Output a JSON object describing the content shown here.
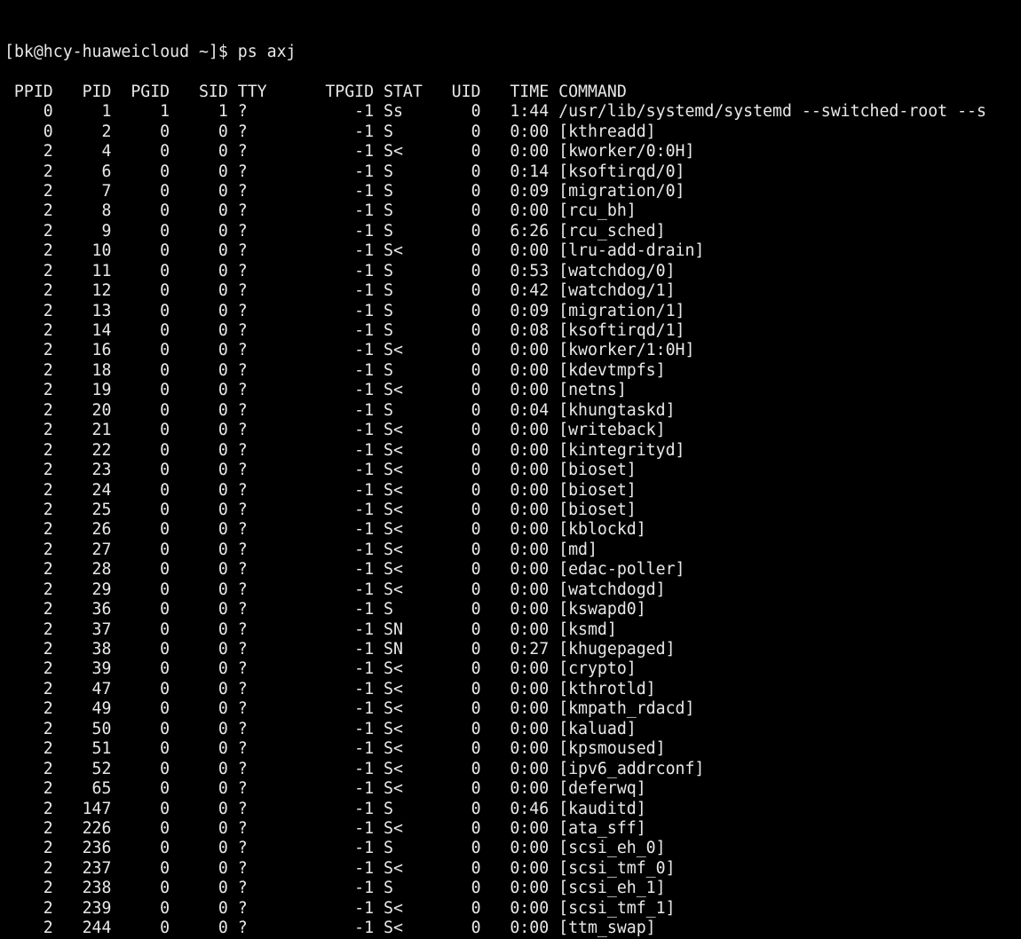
{
  "terminal": {
    "prompt": "[bk@hcy-huaweicloud ~]$ ps axj",
    "text_color": "#e8e8e8",
    "background": "#000000",
    "columns": [
      "PPID",
      "PID",
      "PGID",
      "SID",
      "TTY",
      "TPGID",
      "STAT",
      "UID",
      "TIME",
      "COMMAND"
    ],
    "rows": [
      [
        "0",
        "1",
        "1",
        "1",
        "?",
        "-1",
        "Ss",
        "0",
        "1:44",
        "/usr/lib/systemd/systemd --switched-root --s"
      ],
      [
        "0",
        "2",
        "0",
        "0",
        "?",
        "-1",
        "S",
        "0",
        "0:00",
        "[kthreadd]"
      ],
      [
        "2",
        "4",
        "0",
        "0",
        "?",
        "-1",
        "S<",
        "0",
        "0:00",
        "[kworker/0:0H]"
      ],
      [
        "2",
        "6",
        "0",
        "0",
        "?",
        "-1",
        "S",
        "0",
        "0:14",
        "[ksoftirqd/0]"
      ],
      [
        "2",
        "7",
        "0",
        "0",
        "?",
        "-1",
        "S",
        "0",
        "0:09",
        "[migration/0]"
      ],
      [
        "2",
        "8",
        "0",
        "0",
        "?",
        "-1",
        "S",
        "0",
        "0:00",
        "[rcu_bh]"
      ],
      [
        "2",
        "9",
        "0",
        "0",
        "?",
        "-1",
        "S",
        "0",
        "6:26",
        "[rcu_sched]"
      ],
      [
        "2",
        "10",
        "0",
        "0",
        "?",
        "-1",
        "S<",
        "0",
        "0:00",
        "[lru-add-drain]"
      ],
      [
        "2",
        "11",
        "0",
        "0",
        "?",
        "-1",
        "S",
        "0",
        "0:53",
        "[watchdog/0]"
      ],
      [
        "2",
        "12",
        "0",
        "0",
        "?",
        "-1",
        "S",
        "0",
        "0:42",
        "[watchdog/1]"
      ],
      [
        "2",
        "13",
        "0",
        "0",
        "?",
        "-1",
        "S",
        "0",
        "0:09",
        "[migration/1]"
      ],
      [
        "2",
        "14",
        "0",
        "0",
        "?",
        "-1",
        "S",
        "0",
        "0:08",
        "[ksoftirqd/1]"
      ],
      [
        "2",
        "16",
        "0",
        "0",
        "?",
        "-1",
        "S<",
        "0",
        "0:00",
        "[kworker/1:0H]"
      ],
      [
        "2",
        "18",
        "0",
        "0",
        "?",
        "-1",
        "S",
        "0",
        "0:00",
        "[kdevtmpfs]"
      ],
      [
        "2",
        "19",
        "0",
        "0",
        "?",
        "-1",
        "S<",
        "0",
        "0:00",
        "[netns]"
      ],
      [
        "2",
        "20",
        "0",
        "0",
        "?",
        "-1",
        "S",
        "0",
        "0:04",
        "[khungtaskd]"
      ],
      [
        "2",
        "21",
        "0",
        "0",
        "?",
        "-1",
        "S<",
        "0",
        "0:00",
        "[writeback]"
      ],
      [
        "2",
        "22",
        "0",
        "0",
        "?",
        "-1",
        "S<",
        "0",
        "0:00",
        "[kintegrityd]"
      ],
      [
        "2",
        "23",
        "0",
        "0",
        "?",
        "-1",
        "S<",
        "0",
        "0:00",
        "[bioset]"
      ],
      [
        "2",
        "24",
        "0",
        "0",
        "?",
        "-1",
        "S<",
        "0",
        "0:00",
        "[bioset]"
      ],
      [
        "2",
        "25",
        "0",
        "0",
        "?",
        "-1",
        "S<",
        "0",
        "0:00",
        "[bioset]"
      ],
      [
        "2",
        "26",
        "0",
        "0",
        "?",
        "-1",
        "S<",
        "0",
        "0:00",
        "[kblockd]"
      ],
      [
        "2",
        "27",
        "0",
        "0",
        "?",
        "-1",
        "S<",
        "0",
        "0:00",
        "[md]"
      ],
      [
        "2",
        "28",
        "0",
        "0",
        "?",
        "-1",
        "S<",
        "0",
        "0:00",
        "[edac-poller]"
      ],
      [
        "2",
        "29",
        "0",
        "0",
        "?",
        "-1",
        "S<",
        "0",
        "0:00",
        "[watchdogd]"
      ],
      [
        "2",
        "36",
        "0",
        "0",
        "?",
        "-1",
        "S",
        "0",
        "0:00",
        "[kswapd0]"
      ],
      [
        "2",
        "37",
        "0",
        "0",
        "?",
        "-1",
        "SN",
        "0",
        "0:00",
        "[ksmd]"
      ],
      [
        "2",
        "38",
        "0",
        "0",
        "?",
        "-1",
        "SN",
        "0",
        "0:27",
        "[khugepaged]"
      ],
      [
        "2",
        "39",
        "0",
        "0",
        "?",
        "-1",
        "S<",
        "0",
        "0:00",
        "[crypto]"
      ],
      [
        "2",
        "47",
        "0",
        "0",
        "?",
        "-1",
        "S<",
        "0",
        "0:00",
        "[kthrotld]"
      ],
      [
        "2",
        "49",
        "0",
        "0",
        "?",
        "-1",
        "S<",
        "0",
        "0:00",
        "[kmpath_rdacd]"
      ],
      [
        "2",
        "50",
        "0",
        "0",
        "?",
        "-1",
        "S<",
        "0",
        "0:00",
        "[kaluad]"
      ],
      [
        "2",
        "51",
        "0",
        "0",
        "?",
        "-1",
        "S<",
        "0",
        "0:00",
        "[kpsmoused]"
      ],
      [
        "2",
        "52",
        "0",
        "0",
        "?",
        "-1",
        "S<",
        "0",
        "0:00",
        "[ipv6_addrconf]"
      ],
      [
        "2",
        "65",
        "0",
        "0",
        "?",
        "-1",
        "S<",
        "0",
        "0:00",
        "[deferwq]"
      ],
      [
        "2",
        "147",
        "0",
        "0",
        "?",
        "-1",
        "S",
        "0",
        "0:46",
        "[kauditd]"
      ],
      [
        "2",
        "226",
        "0",
        "0",
        "?",
        "-1",
        "S<",
        "0",
        "0:00",
        "[ata_sff]"
      ],
      [
        "2",
        "236",
        "0",
        "0",
        "?",
        "-1",
        "S",
        "0",
        "0:00",
        "[scsi_eh_0]"
      ],
      [
        "2",
        "237",
        "0",
        "0",
        "?",
        "-1",
        "S<",
        "0",
        "0:00",
        "[scsi_tmf_0]"
      ],
      [
        "2",
        "238",
        "0",
        "0",
        "?",
        "-1",
        "S",
        "0",
        "0:00",
        "[scsi_eh_1]"
      ],
      [
        "2",
        "239",
        "0",
        "0",
        "?",
        "-1",
        "S<",
        "0",
        "0:00",
        "[scsi_tmf_1]"
      ],
      [
        "2",
        "244",
        "0",
        "0",
        "?",
        "-1",
        "S<",
        "0",
        "0:00",
        "[ttm_swap]"
      ]
    ]
  }
}
